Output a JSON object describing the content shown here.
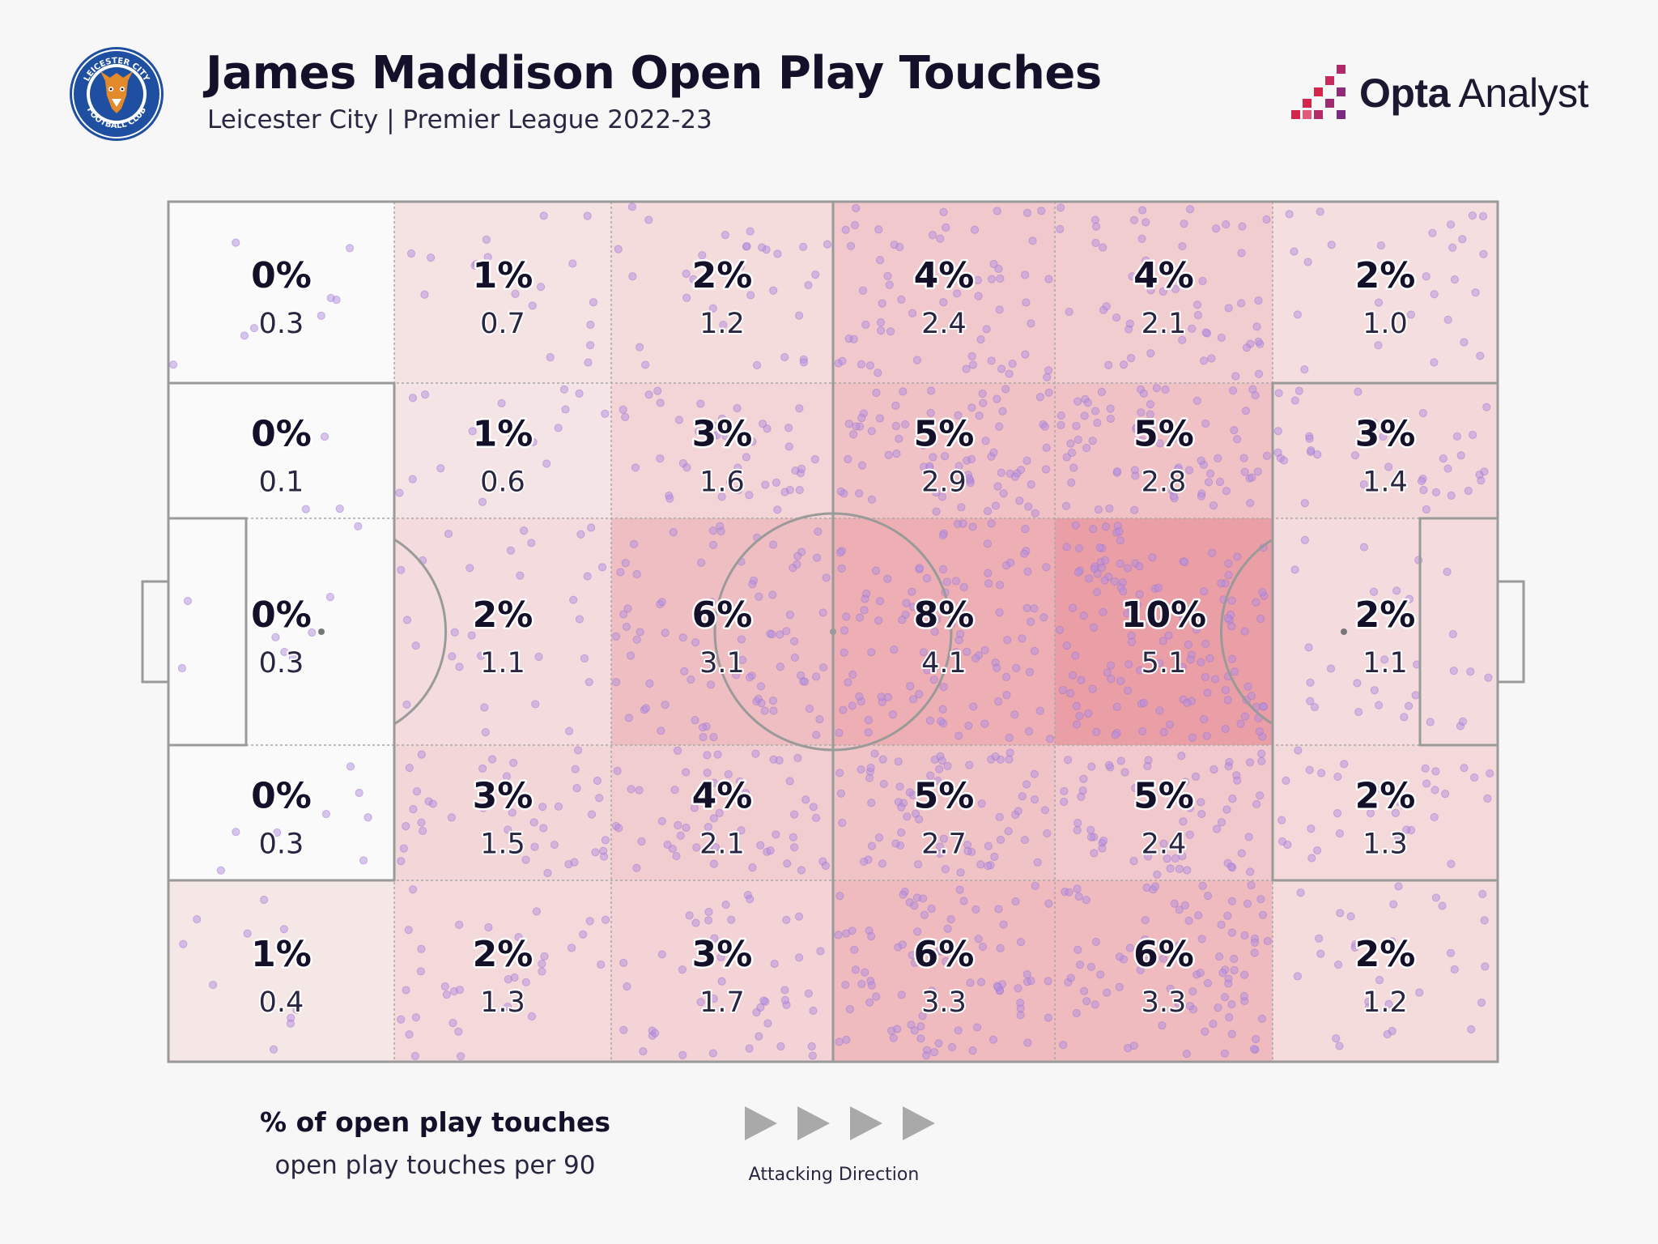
{
  "header": {
    "title": "James Maddison Open Play Touches",
    "subtitle": "Leicester City | Premier League 2022-23",
    "club_crest_text": "LEICESTER CITY FOOTBALL CLUB",
    "brand_bold": "Opta",
    "brand_light": "Analyst"
  },
  "legend": {
    "title": "% of open play touches",
    "subtitle": "open play touches per 90",
    "direction_label": "Attacking Direction",
    "arrow_icon": "play-triangle-icon"
  },
  "colors": {
    "background": "#f7f7f7",
    "pitch_lines": "#9a9a9a",
    "heat_low": "#f7eded",
    "heat_high": "#ea9fa6",
    "touch_dot": "#b48de0",
    "text_dark": "#14102a",
    "brand_red": "#d6254a",
    "brand_purple": "#8e2a78"
  },
  "chart_data": {
    "type": "heatmap",
    "title": "James Maddison Open Play Touches",
    "subtitle": "Leicester City | Premier League 2022-23",
    "columns": 6,
    "rows": 5,
    "value_label": "% of open play touches",
    "secondary_label": "open play touches per 90",
    "cells": [
      [
        {
          "pct": "0%",
          "per90": "0.3"
        },
        {
          "pct": "1%",
          "per90": "0.7"
        },
        {
          "pct": "2%",
          "per90": "1.2"
        },
        {
          "pct": "4%",
          "per90": "2.4"
        },
        {
          "pct": "4%",
          "per90": "2.1"
        },
        {
          "pct": "2%",
          "per90": "1.0"
        }
      ],
      [
        {
          "pct": "0%",
          "per90": "0.1"
        },
        {
          "pct": "1%",
          "per90": "0.6"
        },
        {
          "pct": "3%",
          "per90": "1.6"
        },
        {
          "pct": "5%",
          "per90": "2.9"
        },
        {
          "pct": "5%",
          "per90": "2.8"
        },
        {
          "pct": "3%",
          "per90": "1.4"
        }
      ],
      [
        {
          "pct": "0%",
          "per90": "0.3"
        },
        {
          "pct": "2%",
          "per90": "1.1"
        },
        {
          "pct": "6%",
          "per90": "3.1"
        },
        {
          "pct": "8%",
          "per90": "4.1"
        },
        {
          "pct": "10%",
          "per90": "5.1"
        },
        {
          "pct": "2%",
          "per90": "1.1"
        }
      ],
      [
        {
          "pct": "0%",
          "per90": "0.3"
        },
        {
          "pct": "3%",
          "per90": "1.5"
        },
        {
          "pct": "4%",
          "per90": "2.1"
        },
        {
          "pct": "5%",
          "per90": "2.7"
        },
        {
          "pct": "5%",
          "per90": "2.4"
        },
        {
          "pct": "2%",
          "per90": "1.3"
        }
      ],
      [
        {
          "pct": "1%",
          "per90": "0.4"
        },
        {
          "pct": "2%",
          "per90": "1.3"
        },
        {
          "pct": "3%",
          "per90": "1.7"
        },
        {
          "pct": "6%",
          "per90": "3.3"
        },
        {
          "pct": "6%",
          "per90": "3.3"
        },
        {
          "pct": "2%",
          "per90": "1.2"
        }
      ]
    ]
  }
}
